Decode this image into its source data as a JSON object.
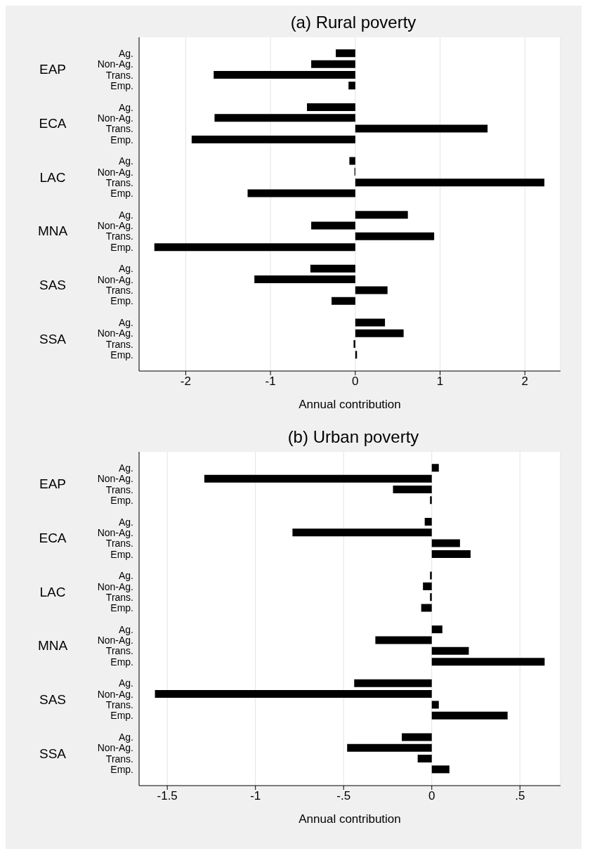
{
  "chart_data": [
    {
      "type": "bar",
      "orientation": "horizontal",
      "title": "(a) Rural poverty",
      "xlabel": "Annual contribution",
      "categories": [
        "Ag.",
        "Non-Ag.",
        "Trans.",
        "Emp.",
        "Ag.",
        "Non-Ag.",
        "Trans.",
        "Emp.",
        "Ag.",
        "Non-Ag.",
        "Trans.",
        "Emp.",
        "Ag.",
        "Non-Ag.",
        "Trans.",
        "Emp.",
        "Ag.",
        "Non-Ag.",
        "Trans.",
        "Emp.",
        "Ag.",
        "Non-Ag.",
        "Trans.",
        "Emp."
      ],
      "values": [
        -0.23,
        -0.52,
        -1.67,
        -0.08,
        -0.57,
        -1.66,
        1.56,
        -1.93,
        -0.07,
        -0.01,
        2.23,
        -1.27,
        0.62,
        -0.52,
        0.93,
        -2.37,
        -0.53,
        -1.19,
        0.38,
        -0.28,
        0.35,
        0.57,
        -0.02,
        0.02
      ],
      "color": "#000000",
      "xlim": [
        -2.55,
        2.42
      ],
      "xticks": [
        -2,
        -1,
        0,
        1,
        2
      ],
      "grid": "x",
      "annotations": [
        "EAP",
        "ECA",
        "LAC",
        "MNA",
        "SAS",
        "SSA"
      ]
    },
    {
      "type": "bar",
      "orientation": "horizontal",
      "title": "(b) Urban poverty",
      "xlabel": "Annual contribution",
      "categories": [
        "Ag.",
        "Non-Ag.",
        "Trans.",
        "Emp.",
        "Ag.",
        "Non-Ag.",
        "Trans.",
        "Emp.",
        "Ag.",
        "Non-Ag.",
        "Trans.",
        "Emp.",
        "Ag.",
        "Non-Ag.",
        "Trans.",
        "Emp.",
        "Ag.",
        "Non-Ag.",
        "Trans.",
        "Emp.",
        "Ag.",
        "Non-Ag.",
        "Trans.",
        "Emp."
      ],
      "values": [
        0.04,
        -1.29,
        -0.22,
        -0.01,
        -0.04,
        -0.79,
        0.16,
        0.22,
        -0.01,
        -0.05,
        -0.01,
        -0.06,
        0.06,
        -0.32,
        0.21,
        0.64,
        -0.44,
        -1.57,
        0.04,
        0.43,
        -0.17,
        -0.48,
        -0.08,
        0.1
      ],
      "color": "#000000",
      "xlim": [
        -1.66,
        0.73
      ],
      "xticks": [
        -1.5,
        -1,
        {
          "value": -0.5,
          "label": "-.5"
        },
        0,
        {
          "value": 0.5,
          "label": ".5"
        }
      ],
      "grid": "x",
      "annotations": [
        "EAP",
        "ECA",
        "LAC",
        "MNA",
        "SAS",
        "SSA"
      ]
    }
  ]
}
